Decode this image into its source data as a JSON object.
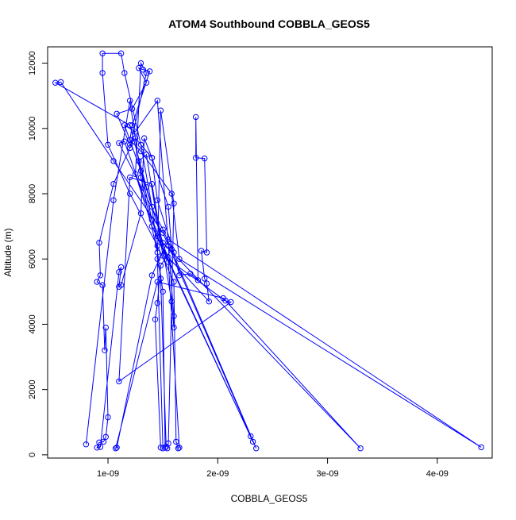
{
  "chart_data": {
    "type": "scatter",
    "title": "ATOM4 Southbound COBBLA_GEOS5",
    "xlabel": "COBBLA_GEOS5",
    "ylabel": "Altitude (m)",
    "xlim": [
      4.5e-10,
      4.5e-09
    ],
    "ylim": [
      -100,
      12500
    ],
    "grid": false,
    "x_ticks": [
      {
        "value": 1e-09,
        "label": "1e-09"
      },
      {
        "value": 2e-09,
        "label": "2e-09"
      },
      {
        "value": 3e-09,
        "label": "3e-09"
      },
      {
        "value": 4e-09,
        "label": "4e-09"
      }
    ],
    "y_ticks": [
      {
        "value": 0,
        "label": "0"
      },
      {
        "value": 2000,
        "label": "2000"
      },
      {
        "value": 4000,
        "label": "4000"
      },
      {
        "value": 6000,
        "label": "6000"
      },
      {
        "value": 8000,
        "label": "8000"
      },
      {
        "value": 10000,
        "label": "10000"
      },
      {
        "value": 12000,
        "label": "12000"
      }
    ],
    "series_color": "#0000ff",
    "series": [
      {
        "points": [
          [
            8e-10,
            320
          ],
          [
            1.05e-09,
            7800
          ],
          [
            1.2e-09,
            10850
          ],
          [
            1.3e-09,
            8500
          ],
          [
            1.45e-09,
            6200
          ],
          [
            1.5e-09,
            5000
          ],
          [
            1.52e-09,
            220
          ],
          [
            1.53e-09,
            250
          ],
          [
            1.48e-09,
            5400
          ],
          [
            1.4e-09,
            7600
          ],
          [
            1.3e-09,
            9500
          ],
          [
            1.15e-09,
            11700
          ],
          [
            1.12e-09,
            12300
          ],
          [
            9.5e-10,
            12300
          ],
          [
            9.5e-10,
            11700
          ],
          [
            1e-09,
            9500
          ],
          [
            1.2e-09,
            8000
          ],
          [
            1.45e-09,
            6400
          ],
          [
            1.6e-09,
            5300
          ],
          [
            1.62e-09,
            400
          ],
          [
            1.64e-09,
            200
          ],
          [
            1.65e-09,
            220
          ],
          [
            1.55e-09,
            5900
          ],
          [
            1.35e-09,
            8200
          ],
          [
            1.2e-09,
            10100
          ],
          [
            5.2e-10,
            11400
          ],
          [
            5.7e-10,
            11420
          ],
          [
            1.05e-09,
            9000
          ],
          [
            1.5e-09,
            6800
          ],
          [
            2.3e-09,
            570
          ],
          [
            2.32e-09,
            400
          ],
          [
            1.45e-09,
            6700
          ],
          [
            1.15e-09,
            9600
          ],
          [
            1.1e-09,
            9550
          ],
          [
            1.5e-09,
            6900
          ],
          [
            2.35e-09,
            200
          ],
          [
            1.4e-09,
            7000
          ],
          [
            1.25e-09,
            8600
          ],
          [
            1.3e-09,
            12000
          ],
          [
            1.35e-09,
            11700
          ],
          [
            1.2e-09,
            9400
          ],
          [
            1.05e-09,
            8300
          ],
          [
            9.2e-10,
            6500
          ],
          [
            9.3e-10,
            5500
          ],
          [
            9e-10,
            5300
          ],
          [
            9.5e-10,
            5200
          ],
          [
            9.7e-10,
            3200
          ],
          [
            9.8e-10,
            3900
          ],
          [
            1e-09,
            1150
          ],
          [
            9.8e-10,
            550
          ],
          [
            9.6e-10,
            400
          ],
          [
            9.2e-10,
            380
          ],
          [
            9e-10,
            220
          ],
          [
            9.3e-10,
            240
          ],
          [
            1.1e-09,
            5600
          ],
          [
            1.12e-09,
            5750
          ],
          [
            1.1e-09,
            5150
          ],
          [
            1.12e-09,
            5200
          ],
          [
            1.3e-09,
            7400
          ],
          [
            1.33e-09,
            9700
          ],
          [
            1.4e-09,
            9100
          ],
          [
            1.45e-09,
            7800
          ],
          [
            1.6e-09,
            6200
          ],
          [
            1.65e-09,
            5500
          ],
          [
            1.75e-09,
            5550
          ],
          [
            1.82e-09,
            5350
          ],
          [
            1.8e-09,
            10350
          ],
          [
            1.8e-09,
            9100
          ],
          [
            1.88e-09,
            9080
          ],
          [
            1.9e-09,
            6200
          ],
          [
            1.85e-09,
            6250
          ],
          [
            1.88e-09,
            5400
          ],
          [
            1.9e-09,
            5250
          ],
          [
            1.92e-09,
            4700
          ],
          [
            1.55e-09,
            6050
          ],
          [
            1.4e-09,
            7200
          ],
          [
            1.28e-09,
            9000
          ],
          [
            1.35e-09,
            9200
          ],
          [
            1.5e-09,
            6100
          ],
          [
            2.07e-09,
            4720
          ],
          [
            2.12e-09,
            4680
          ],
          [
            1.1e-09,
            2250
          ],
          [
            1.2e-09,
            8500
          ],
          [
            1.4e-09,
            8300
          ],
          [
            1.58e-09,
            4700
          ],
          [
            1.6e-09,
            3900
          ],
          [
            1.6e-09,
            4250
          ],
          [
            1.55e-09,
            6400
          ],
          [
            1.45e-09,
            10850
          ],
          [
            1.25e-09,
            9900
          ],
          [
            1.15e-09,
            10100
          ],
          [
            1.3e-09,
            8700
          ],
          [
            1.5e-09,
            6500
          ],
          [
            3.3e-09,
            200
          ],
          [
            2.05e-09,
            4800
          ],
          [
            1.45e-09,
            5300
          ],
          [
            1.07e-09,
            200
          ],
          [
            1.08e-09,
            220
          ],
          [
            1.4e-09,
            5500
          ],
          [
            1.55e-09,
            6600
          ],
          [
            4.4e-09,
            230
          ],
          [
            1.65e-09,
            6000
          ],
          [
            1.58e-09,
            8000
          ],
          [
            1.3e-09,
            9300
          ],
          [
            1.2e-09,
            9650
          ],
          [
            1.22e-09,
            10100
          ],
          [
            1.38e-09,
            11750
          ],
          [
            1.32e-09,
            11800
          ],
          [
            1.28e-09,
            11850
          ],
          [
            1.35e-09,
            11400
          ],
          [
            1.22e-09,
            10600
          ],
          [
            1.08e-09,
            10450
          ],
          [
            1.2e-09,
            9500
          ],
          [
            1.25e-09,
            9700
          ],
          [
            1.4e-09,
            9100
          ],
          [
            1.55e-09,
            7600
          ],
          [
            1.58e-09,
            6300
          ],
          [
            1.48e-09,
            5800
          ],
          [
            1.45e-09,
            4650
          ],
          [
            1.43e-09,
            4150
          ],
          [
            1.48e-09,
            220
          ],
          [
            1.5e-09,
            200
          ],
          [
            1.45e-09,
            6000
          ],
          [
            1.48e-09,
            10550
          ],
          [
            1.6e-09,
            7700
          ],
          [
            1.55e-09,
            350
          ],
          [
            1.54e-09,
            200
          ]
        ]
      }
    ]
  }
}
